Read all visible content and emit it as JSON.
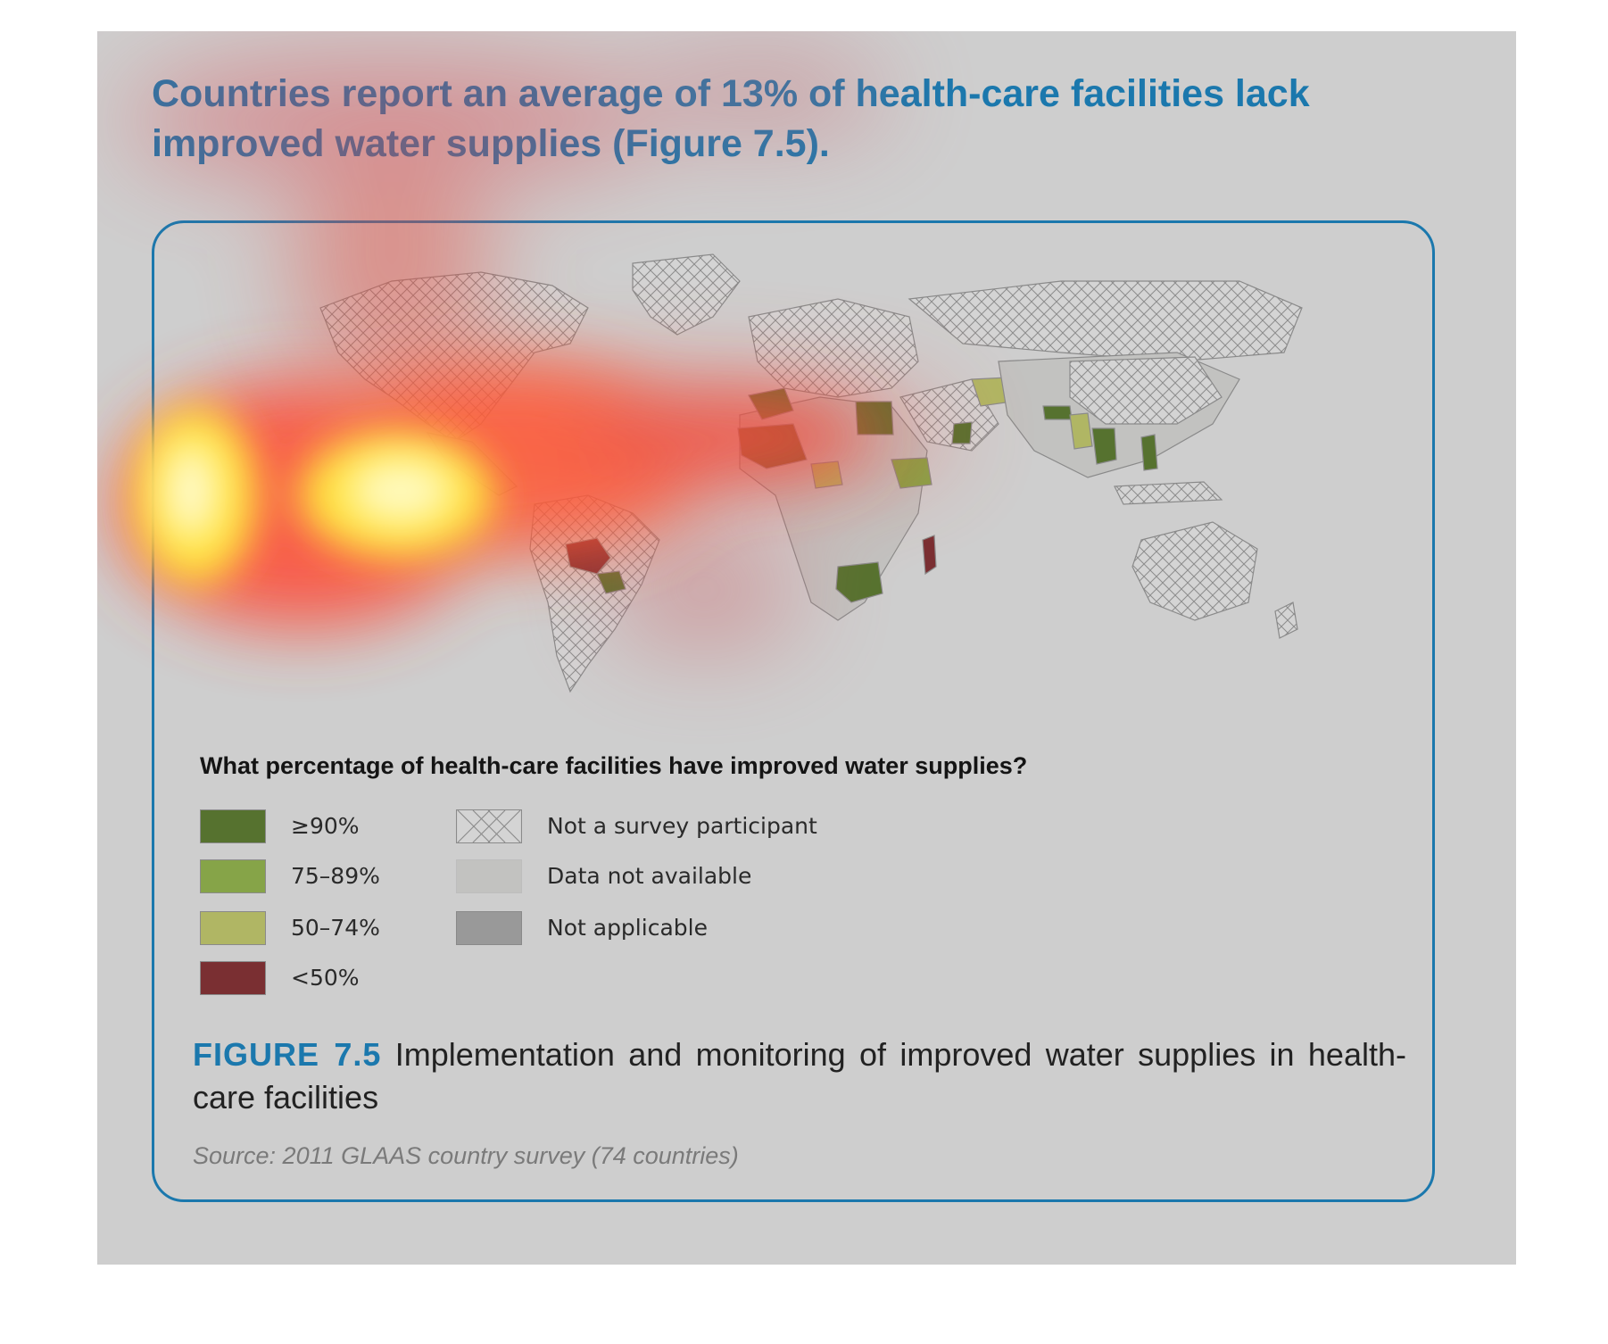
{
  "headline": "Countries report an average of 13% of health-care facilities lack improved water supplies (Figure 7.5).",
  "legend": {
    "title": "What percentage of health-care facilities have improved water supplies?",
    "items": [
      {
        "label": "≥90%",
        "color": "#56722f",
        "pattern": "solid"
      },
      {
        "label": "75–89%",
        "color": "#86a448",
        "pattern": "solid"
      },
      {
        "label": "50–74%",
        "color": "#b0b664",
        "pattern": "solid"
      },
      {
        "label": "<50%",
        "color": "#7a2f32",
        "pattern": "solid"
      },
      {
        "label": "Not a survey participant",
        "color": "#d2d2d2",
        "pattern": "crosshatch"
      },
      {
        "label": "Data not available",
        "color": "#c2c2c0",
        "pattern": "solid"
      },
      {
        "label": "Not applicable",
        "color": "#999999",
        "pattern": "solid"
      }
    ]
  },
  "caption": {
    "figure_label": "FIGURE 7.5",
    "text": " Implementation and monitoring of improved water supplies in health-care facilities"
  },
  "source": "Source: 2011 GLAAS country survey (74 countries)",
  "colors": {
    "accent": "#1b78ad",
    "panel": "#cecece",
    "heatmap_hot": "#fffb9a",
    "heatmap_warm": "#ff5a3c"
  }
}
